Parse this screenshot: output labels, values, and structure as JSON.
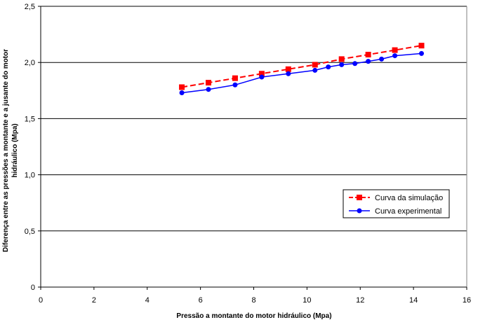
{
  "chart_data": {
    "type": "line",
    "xlabel": "Pressão a montante do motor hidráulico (Mpa)",
    "ylabel_lines": [
      "Diferença entre as pressões a montante e a jusante do motor",
      "hidráulico (Mpa)"
    ],
    "xlim": [
      0,
      16
    ],
    "ylim": [
      0,
      2.5
    ],
    "x_ticks": [
      0,
      2,
      4,
      6,
      8,
      10,
      12,
      14,
      16
    ],
    "x_tick_labels": [
      "0",
      "2",
      "4",
      "6",
      "8",
      "10",
      "12",
      "14",
      "16"
    ],
    "y_ticks": [
      0,
      0.5,
      1.0,
      1.5,
      2.0,
      2.5
    ],
    "y_tick_labels": [
      "0",
      "0,5",
      "1,0",
      "1,5",
      "2,0",
      "2,5"
    ],
    "grid": "horizontal major gridlines",
    "legend_position": "lower-right",
    "series": [
      {
        "name": "Curva da simulação",
        "color": "#ff0000",
        "line_style": "dashed",
        "marker": "square",
        "x": [
          5.3,
          6.3,
          7.3,
          8.3,
          9.3,
          10.3,
          11.3,
          12.3,
          13.3,
          14.3
        ],
        "y": [
          1.78,
          1.82,
          1.86,
          1.9,
          1.94,
          1.98,
          2.03,
          2.07,
          2.11,
          2.15
        ]
      },
      {
        "name": "Curva experimental",
        "color": "#0000ff",
        "line_style": "solid",
        "marker": "circle",
        "x": [
          5.3,
          6.3,
          7.3,
          8.3,
          9.3,
          10.3,
          10.8,
          11.3,
          11.8,
          12.3,
          12.8,
          13.3,
          14.3
        ],
        "y": [
          1.73,
          1.76,
          1.8,
          1.87,
          1.9,
          1.93,
          1.96,
          1.98,
          1.99,
          2.01,
          2.03,
          2.06,
          2.08
        ]
      }
    ]
  }
}
